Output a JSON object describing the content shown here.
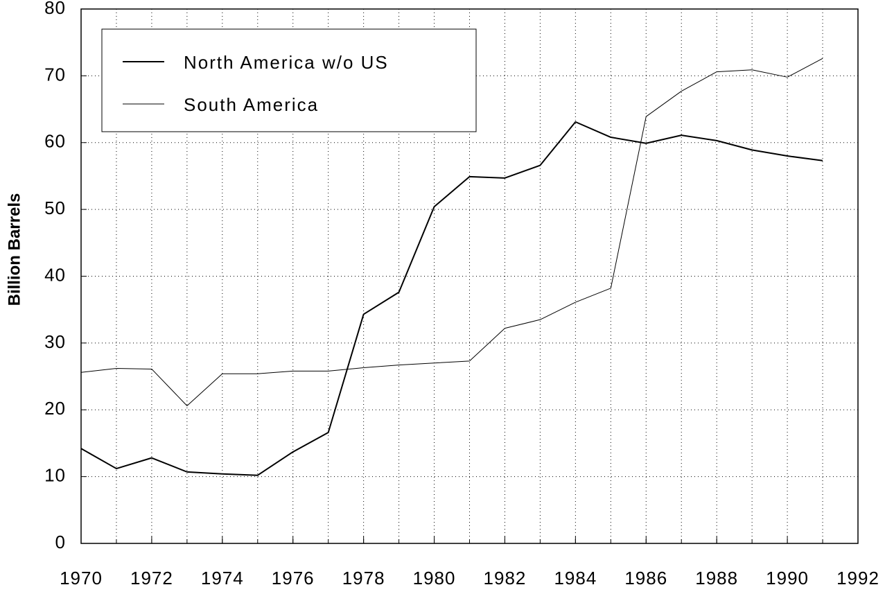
{
  "chart_data": {
    "type": "line",
    "ylabel": "Billion Barrels",
    "x": [
      1970,
      1971,
      1972,
      1973,
      1974,
      1975,
      1976,
      1977,
      1978,
      1979,
      1980,
      1981,
      1982,
      1983,
      1984,
      1985,
      1986,
      1987,
      1988,
      1989,
      1990,
      1991
    ],
    "series": [
      {
        "name": "North America w/o US",
        "color": "#000000",
        "line_width": 2,
        "values": [
          14.2,
          11.2,
          12.8,
          10.7,
          10.4,
          10.2,
          13.7,
          16.6,
          34.3,
          37.6,
          50.4,
          54.9,
          54.7,
          56.6,
          63.1,
          60.8,
          59.9,
          61.1,
          60.3,
          58.9,
          58.0,
          57.3
        ]
      },
      {
        "name": "South America",
        "color": "#000000",
        "line_width": 1,
        "values": [
          25.6,
          26.2,
          26.1,
          20.6,
          25.4,
          25.4,
          25.8,
          25.8,
          26.3,
          26.7,
          27.0,
          27.3,
          32.2,
          33.5,
          36.1,
          38.2,
          63.9,
          67.7,
          70.6,
          70.9,
          69.8,
          72.6
        ]
      }
    ],
    "xlim": [
      1970,
      1992
    ],
    "xticks": [
      1970,
      1972,
      1974,
      1976,
      1978,
      1980,
      1982,
      1984,
      1986,
      1988,
      1990,
      1992
    ],
    "ylim": [
      0,
      80
    ],
    "yticks": [
      0,
      10,
      20,
      30,
      40,
      50,
      60,
      70,
      80
    ],
    "grid": true,
    "legend": "upper left"
  }
}
